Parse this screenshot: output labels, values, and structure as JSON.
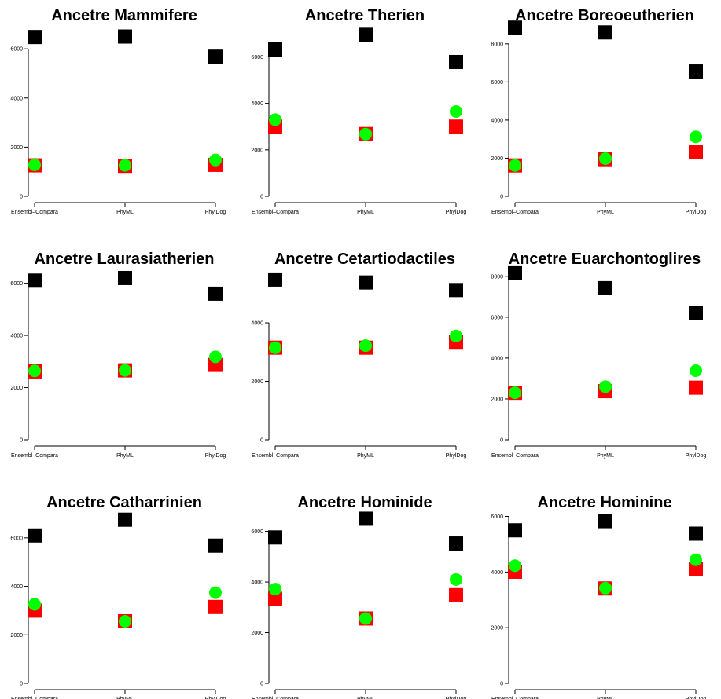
{
  "chart_data": [
    {
      "type": "scatter",
      "title": "Ancetre Mammifere",
      "categories": [
        "Ensembl–Compara",
        "PhyML",
        "PhylDog"
      ],
      "yticks": [
        0,
        2000,
        4000,
        6000
      ],
      "ylim": [
        0,
        6900
      ],
      "series": [
        {
          "marker": "square",
          "color": "#000000",
          "values": [
            6480,
            6500,
            5680
          ]
        },
        {
          "marker": "square",
          "color": "#ff0000",
          "values": [
            1260,
            1240,
            1280
          ]
        },
        {
          "marker": "circle",
          "color": "#00ff00",
          "values": [
            1280,
            1260,
            1480
          ]
        }
      ]
    },
    {
      "type": "scatter",
      "title": "Ancetre Therien",
      "categories": [
        "Ensembl–Compara",
        "PhyML",
        "PhylDog"
      ],
      "yticks": [
        0,
        2000,
        4000,
        6000
      ],
      "ylim": [
        0,
        7300
      ],
      "series": [
        {
          "marker": "square",
          "color": "#000000",
          "values": [
            6320,
            6950,
            5780
          ]
        },
        {
          "marker": "square",
          "color": "#ff0000",
          "values": [
            3000,
            2680,
            3000
          ]
        },
        {
          "marker": "circle",
          "color": "#00ff00",
          "values": [
            3300,
            2680,
            3650
          ]
        }
      ]
    },
    {
      "type": "scatter",
      "title": "Ancetre Boreoeutherien",
      "categories": [
        "Ensembl–Compara",
        "PhyML",
        "PhylDog"
      ],
      "yticks": [
        0,
        2000,
        4000,
        6000,
        8000
      ],
      "ylim": [
        0,
        8900
      ],
      "series": [
        {
          "marker": "square",
          "color": "#000000",
          "values": [
            8850,
            8600,
            6550
          ]
        },
        {
          "marker": "square",
          "color": "#ff0000",
          "values": [
            1620,
            1950,
            2330
          ]
        },
        {
          "marker": "circle",
          "color": "#00ff00",
          "values": [
            1620,
            1980,
            3120
          ]
        }
      ]
    },
    {
      "type": "scatter",
      "title": "Ancetre Laurasiatherien",
      "categories": [
        "Ensembl–Compara",
        "PhyML",
        "PhylDog"
      ],
      "yticks": [
        0,
        2000,
        4000,
        6000
      ],
      "ylim": [
        0,
        6500
      ],
      "series": [
        {
          "marker": "square",
          "color": "#000000",
          "values": [
            6100,
            6200,
            5600
          ]
        },
        {
          "marker": "square",
          "color": "#ff0000",
          "values": [
            2620,
            2660,
            2870
          ]
        },
        {
          "marker": "circle",
          "color": "#00ff00",
          "values": [
            2640,
            2660,
            3180
          ]
        }
      ]
    },
    {
      "type": "scatter",
      "title": "Ancetre Cetartiodactiles",
      "categories": [
        "Ensembl–Compara",
        "PhyML",
        "PhylDog"
      ],
      "yticks": [
        0,
        2000,
        4000
      ],
      "ylim": [
        0,
        5800
      ],
      "series": [
        {
          "marker": "square",
          "color": "#000000",
          "values": [
            5480,
            5380,
            5120
          ]
        },
        {
          "marker": "square",
          "color": "#ff0000",
          "values": [
            3150,
            3150,
            3350
          ]
        },
        {
          "marker": "circle",
          "color": "#00ff00",
          "values": [
            3150,
            3220,
            3550
          ]
        }
      ]
    },
    {
      "type": "scatter",
      "title": "Ancetre Euarchontoglires",
      "categories": [
        "Ensembl–Compara",
        "PhyML",
        "PhylDog"
      ],
      "yticks": [
        0,
        2000,
        4000,
        6000,
        8000
      ],
      "ylim": [
        0,
        8300
      ],
      "series": [
        {
          "marker": "square",
          "color": "#000000",
          "values": [
            8150,
            7420,
            6200
          ]
        },
        {
          "marker": "square",
          "color": "#ff0000",
          "values": [
            2300,
            2380,
            2550
          ]
        },
        {
          "marker": "circle",
          "color": "#00ff00",
          "values": [
            2300,
            2600,
            3380
          ]
        }
      ]
    },
    {
      "type": "scatter",
      "title": "Ancetre Catharrinien",
      "categories": [
        "Ensembl–Compara",
        "PhyML",
        "PhylDog"
      ],
      "yticks": [
        0,
        2000,
        4000,
        6000
      ],
      "ylim": [
        0,
        7000
      ],
      "series": [
        {
          "marker": "square",
          "color": "#000000",
          "values": [
            6100,
            6750,
            5680
          ]
        },
        {
          "marker": "square",
          "color": "#ff0000",
          "values": [
            3000,
            2560,
            3150
          ]
        },
        {
          "marker": "circle",
          "color": "#00ff00",
          "values": [
            3260,
            2560,
            3740
          ]
        }
      ]
    },
    {
      "type": "scatter",
      "title": "Ancetre Hominide",
      "categories": [
        "Ensembl–Compara",
        "PhyML",
        "PhylDog"
      ],
      "yticks": [
        0,
        2000,
        4000,
        6000
      ],
      "ylim": [
        0,
        6700
      ],
      "series": [
        {
          "marker": "square",
          "color": "#000000",
          "values": [
            5760,
            6500,
            5520
          ]
        },
        {
          "marker": "square",
          "color": "#ff0000",
          "values": [
            3340,
            2560,
            3480
          ]
        },
        {
          "marker": "circle",
          "color": "#00ff00",
          "values": [
            3720,
            2560,
            4100
          ]
        }
      ]
    },
    {
      "type": "scatter",
      "title": "Ancetre Hominine",
      "categories": [
        "Ensembl–Compara",
        "PhyML",
        "PhylDog"
      ],
      "yticks": [
        0,
        2000,
        4000,
        6000
      ],
      "ylim": [
        0,
        6100
      ],
      "series": [
        {
          "marker": "square",
          "color": "#000000",
          "values": [
            5500,
            5830,
            5380
          ]
        },
        {
          "marker": "square",
          "color": "#ff0000",
          "values": [
            4010,
            3410,
            4110
          ]
        },
        {
          "marker": "circle",
          "color": "#00ff00",
          "values": [
            4230,
            3420,
            4440
          ]
        }
      ]
    }
  ]
}
